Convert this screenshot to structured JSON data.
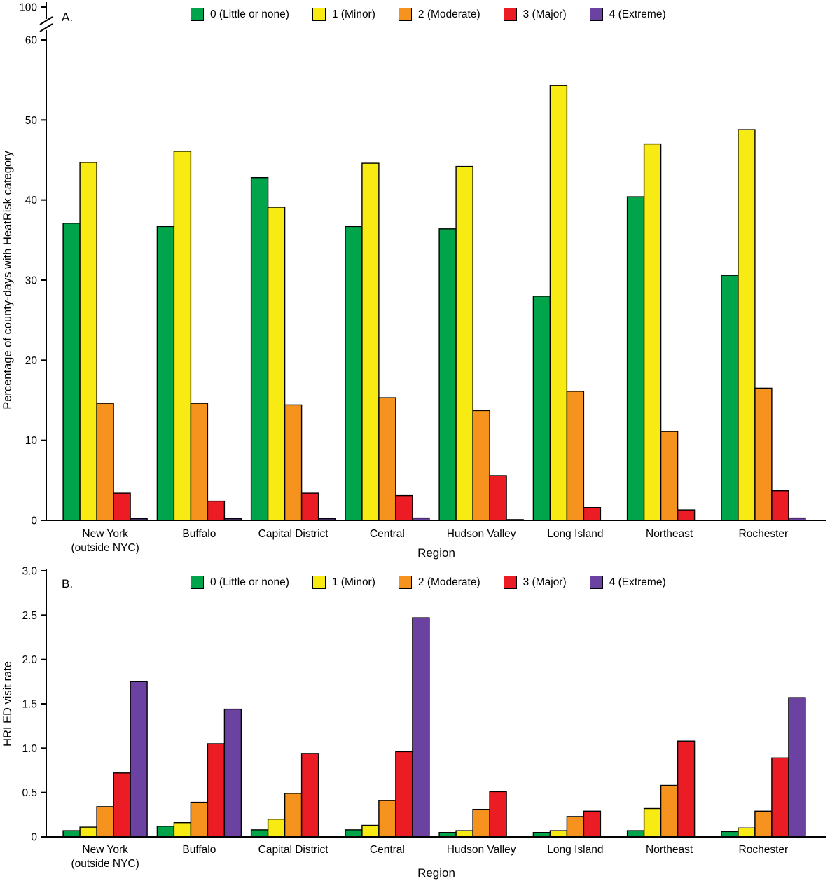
{
  "figure": {
    "background": "#ffffff"
  },
  "chart_data": [
    {
      "type": "bar",
      "panel_label": "A.",
      "title": "",
      "xlabel": "Region",
      "ylabel": "Percentage of county-days with HeatRisk category",
      "ylim": [
        0,
        60
      ],
      "ytick_values": [
        0,
        10,
        20,
        30,
        40,
        50,
        60
      ],
      "ytick_labels": [
        "0",
        "10",
        "20",
        "30",
        "40",
        "50",
        "60"
      ],
      "axis_break": {
        "upper_tick_label": "100"
      },
      "legend_position": "top",
      "grid": false,
      "categories": [
        [
          "New York",
          "(outside NYC)"
        ],
        [
          "Buffalo"
        ],
        [
          "Capital District"
        ],
        [
          "Central"
        ],
        [
          "Hudson Valley"
        ],
        [
          "Long Island"
        ],
        [
          "Northeast"
        ],
        [
          "Rochester"
        ]
      ],
      "series": [
        {
          "name": "0 (Little or none)",
          "color": "#00A44A",
          "values": [
            37.1,
            36.7,
            42.8,
            36.7,
            36.4,
            28.0,
            40.4,
            30.6
          ]
        },
        {
          "name": "1 (Minor)",
          "color": "#F8EB13",
          "values": [
            44.7,
            46.1,
            39.1,
            44.6,
            44.2,
            54.3,
            47.0,
            48.8
          ]
        },
        {
          "name": "2 (Moderate)",
          "color": "#F6921E",
          "values": [
            14.6,
            14.6,
            14.4,
            15.3,
            13.7,
            16.1,
            11.1,
            16.5
          ]
        },
        {
          "name": "3 (Major)",
          "color": "#EC1C24",
          "values": [
            3.4,
            2.4,
            3.4,
            3.1,
            5.6,
            1.6,
            1.3,
            3.7
          ]
        },
        {
          "name": "4 (Extreme)",
          "color": "#6B42A1",
          "values": [
            0.2,
            0.2,
            0.2,
            0.3,
            0.1,
            0,
            0,
            0.3
          ]
        }
      ]
    },
    {
      "type": "bar",
      "panel_label": "B.",
      "title": "",
      "xlabel": "Region",
      "ylabel": "HRI ED visit rate",
      "ylim": [
        0,
        3.0
      ],
      "ytick_values": [
        0,
        0.5,
        1.0,
        1.5,
        2.0,
        2.5,
        3.0
      ],
      "ytick_labels": [
        "0",
        "0.5",
        "1.0",
        "1.5",
        "2.0",
        "2.5",
        "3.0"
      ],
      "legend_position": "top",
      "grid": false,
      "categories": [
        [
          "New York",
          "(outside NYC)"
        ],
        [
          "Buffalo"
        ],
        [
          "Capital District"
        ],
        [
          "Central"
        ],
        [
          "Hudson Valley"
        ],
        [
          "Long Island"
        ],
        [
          "Northeast"
        ],
        [
          "Rochester"
        ]
      ],
      "series": [
        {
          "name": "0 (Little or none)",
          "color": "#00A44A",
          "values": [
            0.07,
            0.12,
            0.08,
            0.08,
            0.05,
            0.05,
            0.07,
            0.06
          ]
        },
        {
          "name": "1 (Minor)",
          "color": "#F8EB13",
          "values": [
            0.11,
            0.16,
            0.2,
            0.13,
            0.07,
            0.07,
            0.32,
            0.1
          ]
        },
        {
          "name": "2 (Moderate)",
          "color": "#F6921E",
          "values": [
            0.34,
            0.39,
            0.49,
            0.41,
            0.31,
            0.23,
            0.58,
            0.29
          ]
        },
        {
          "name": "3 (Major)",
          "color": "#EC1C24",
          "values": [
            0.72,
            1.05,
            0.94,
            0.96,
            0.51,
            0.29,
            1.08,
            0.89
          ]
        },
        {
          "name": "4 (Extreme)",
          "color": "#6B42A1",
          "values": [
            1.75,
            1.44,
            0,
            2.47,
            0,
            0,
            0,
            1.57
          ]
        }
      ]
    }
  ]
}
